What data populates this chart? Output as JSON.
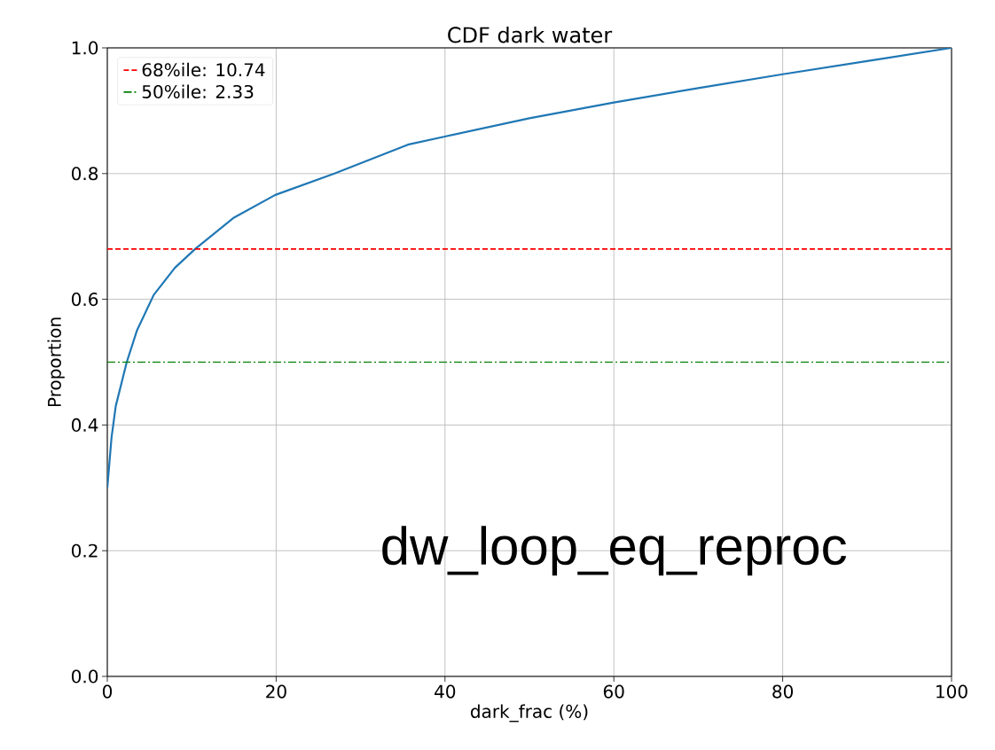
{
  "chart_data": {
    "type": "line",
    "title": "CDF dark water",
    "xlabel": "dark_frac (%)",
    "ylabel": "Proportion",
    "xlim": [
      0,
      100
    ],
    "ylim": [
      0,
      1.0
    ],
    "xticks": [
      0,
      20,
      40,
      60,
      80,
      100
    ],
    "yticks": [
      {
        "value": 0,
        "label": "0.0"
      },
      {
        "value": 0.2,
        "label": "0.2"
      },
      {
        "value": 0.4,
        "label": "0.4"
      },
      {
        "value": 0.6,
        "label": "0.6"
      },
      {
        "value": 0.8,
        "label": "0.8"
      },
      {
        "value": 1.0,
        "label": "1.0"
      }
    ],
    "grid": true,
    "legend": "top left",
    "series": [
      {
        "color": "#1f77b4",
        "x": [
          0,
          0.5,
          1,
          2.3,
          3.5,
          5.5,
          8,
          10.4,
          15,
          19.9,
          26.9,
          35.6,
          40,
          50,
          60,
          70,
          80,
          90,
          100
        ],
        "values": [
          0.3,
          0.38,
          0.43,
          0.5,
          0.55,
          0.607,
          0.65,
          0.68,
          0.73,
          0.766,
          0.8,
          0.846,
          0.859,
          0.888,
          0.913,
          0.936,
          0.958,
          0.979,
          1.0
        ]
      }
    ],
    "ref_lines": [
      {
        "axis": "y",
        "value": 0.68,
        "label": "68%ile: 10.74",
        "color": "#ff0000",
        "line_style": "dashed"
      },
      {
        "axis": "y",
        "value": 0.5,
        "label": "50%ile: 2.33",
        "color": "#008000",
        "line_style": "dashdot"
      }
    ],
    "annotations": [
      "dw_loop_eq_reproc"
    ]
  }
}
